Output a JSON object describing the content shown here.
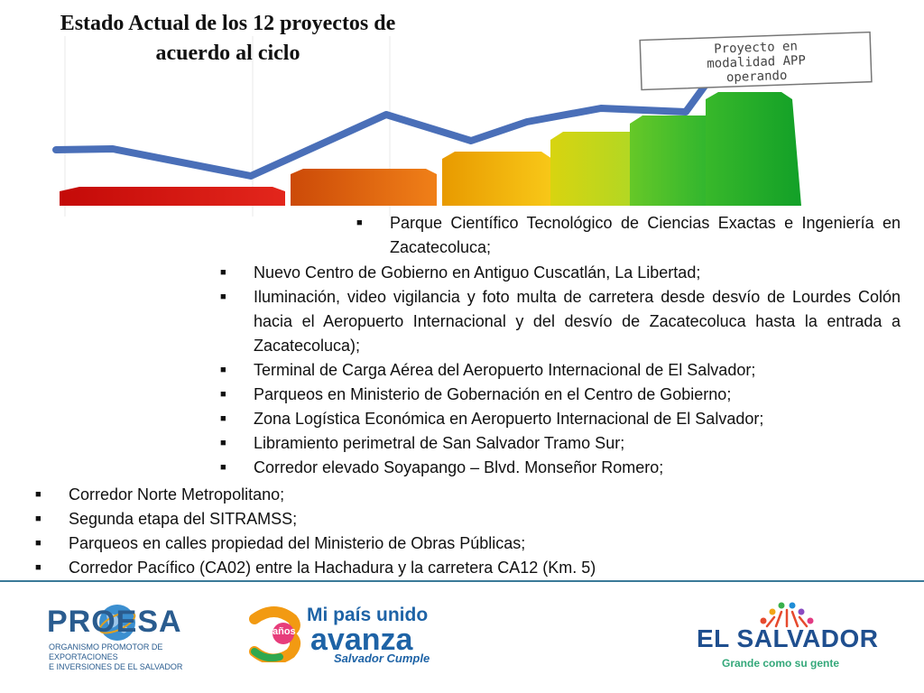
{
  "slide": {
    "title_line1": "Estado Actual de los 12 proyectos de",
    "title_line2": "acuerdo al ciclo",
    "sign_line1": "Proyecto en",
    "sign_line2": "modalidad APP",
    "sign_line3": "operando"
  },
  "colors": {
    "arrow": "#4a6fb8",
    "bar_red": "#d81410",
    "bar_orange": "#e8620c",
    "bar_yellow": "#f0c000",
    "bar_lime": "#b0dc20",
    "bar_green": "#2cbb2c",
    "footer_line": "#3a7a98"
  },
  "projects": [
    "Parque  Científico Tecnológico de Ciencias Exactas e Ingeniería en Zacatecoluca;",
    "Nuevo Centro de Gobierno en Antiguo Cuscatlán, La Libertad;",
    "Iluminación, video vigilancia y foto multa de carretera desde desvío de Lourdes Colón hacia el Aeropuerto Internacional y del desvío de Zacatecoluca hasta la entrada a Zacatecoluca);",
    "Terminal de Carga Aérea del Aeropuerto Internacional de El Salvador;",
    "Parqueos en Ministerio de Gobernación en el Centro de Gobierno;",
    "Zona Logística Económica en Aeropuerto Internacional de El Salvador;",
    "Libramiento perimetral de San Salvador Tramo Sur;",
    "Corredor elevado Soyapango – Blvd. Monseñor Romero;",
    "Corredor Norte Metropolitano;",
    "Segunda etapa del SITRAMSS;",
    "Parqueos en calles propiedad del Ministerio de Obras Públicas;",
    "Corredor Pacífico (CA02) entre la Hachadura y la carretera CA12 (Km. 5)"
  ],
  "bullet_char": "■",
  "footer": {
    "proesa_name": "PROESA",
    "proesa_subtitle_line1": "ORGANISMO PROMOTOR DE EXPORTACIONES",
    "proesa_subtitle_line2": "E INVERSIONES DE EL SALVADOR",
    "campaign_line1": "Mi país unido",
    "campaign_line2": "avanza",
    "campaign_years": "años",
    "campaign_tagline": "Salvador Cumple",
    "country_name": "EL SALVADOR",
    "country_tagline": "Grande como su gente"
  }
}
